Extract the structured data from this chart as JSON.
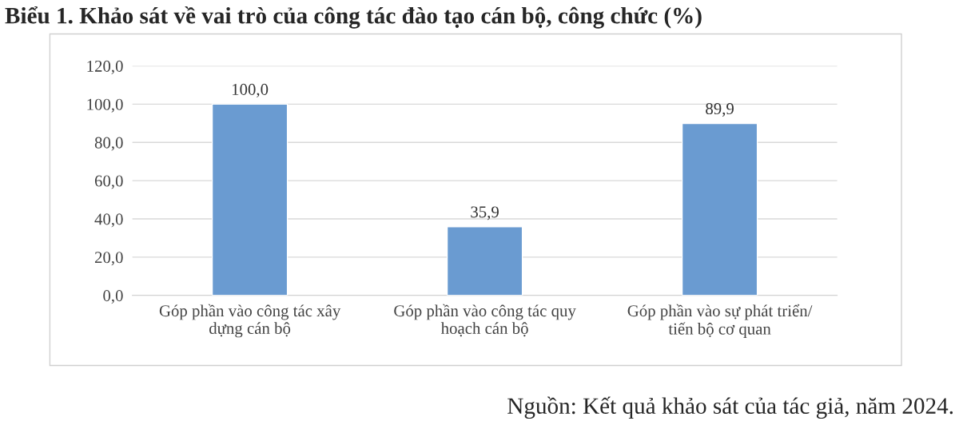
{
  "chart_data": {
    "type": "bar",
    "title": "Biểu 1. Khảo sát về vai trò của công tác đào tạo cán bộ, công chức (%)",
    "categories": [
      "Góp phần vào công tác xây\ndựng cán bộ",
      "Góp phần vào công tác quy\nhoạch cán bộ",
      "Góp phần vào sự phát triển/\ntiến bộ cơ quan"
    ],
    "values": [
      100.0,
      35.9,
      89.9
    ],
    "color": "#6a9bd1",
    "value_labels": [
      "100,0",
      "35,9",
      "89,9"
    ],
    "ylim": [
      0,
      120
    ],
    "yticks": [
      {
        "value": 0,
        "label": "0,0"
      },
      {
        "value": 20,
        "label": "20,0"
      },
      {
        "value": 40,
        "label": "40,0"
      },
      {
        "value": 60,
        "label": "60,0"
      },
      {
        "value": 80,
        "label": "80,0"
      },
      {
        "value": 100,
        "label": "100,0"
      },
      {
        "value": 120,
        "label": "120,0"
      }
    ],
    "grid": "y",
    "legend": false,
    "annotations": [
      "Nguồn: Kết quả khảo sát của tác giả, năm 2024."
    ]
  }
}
